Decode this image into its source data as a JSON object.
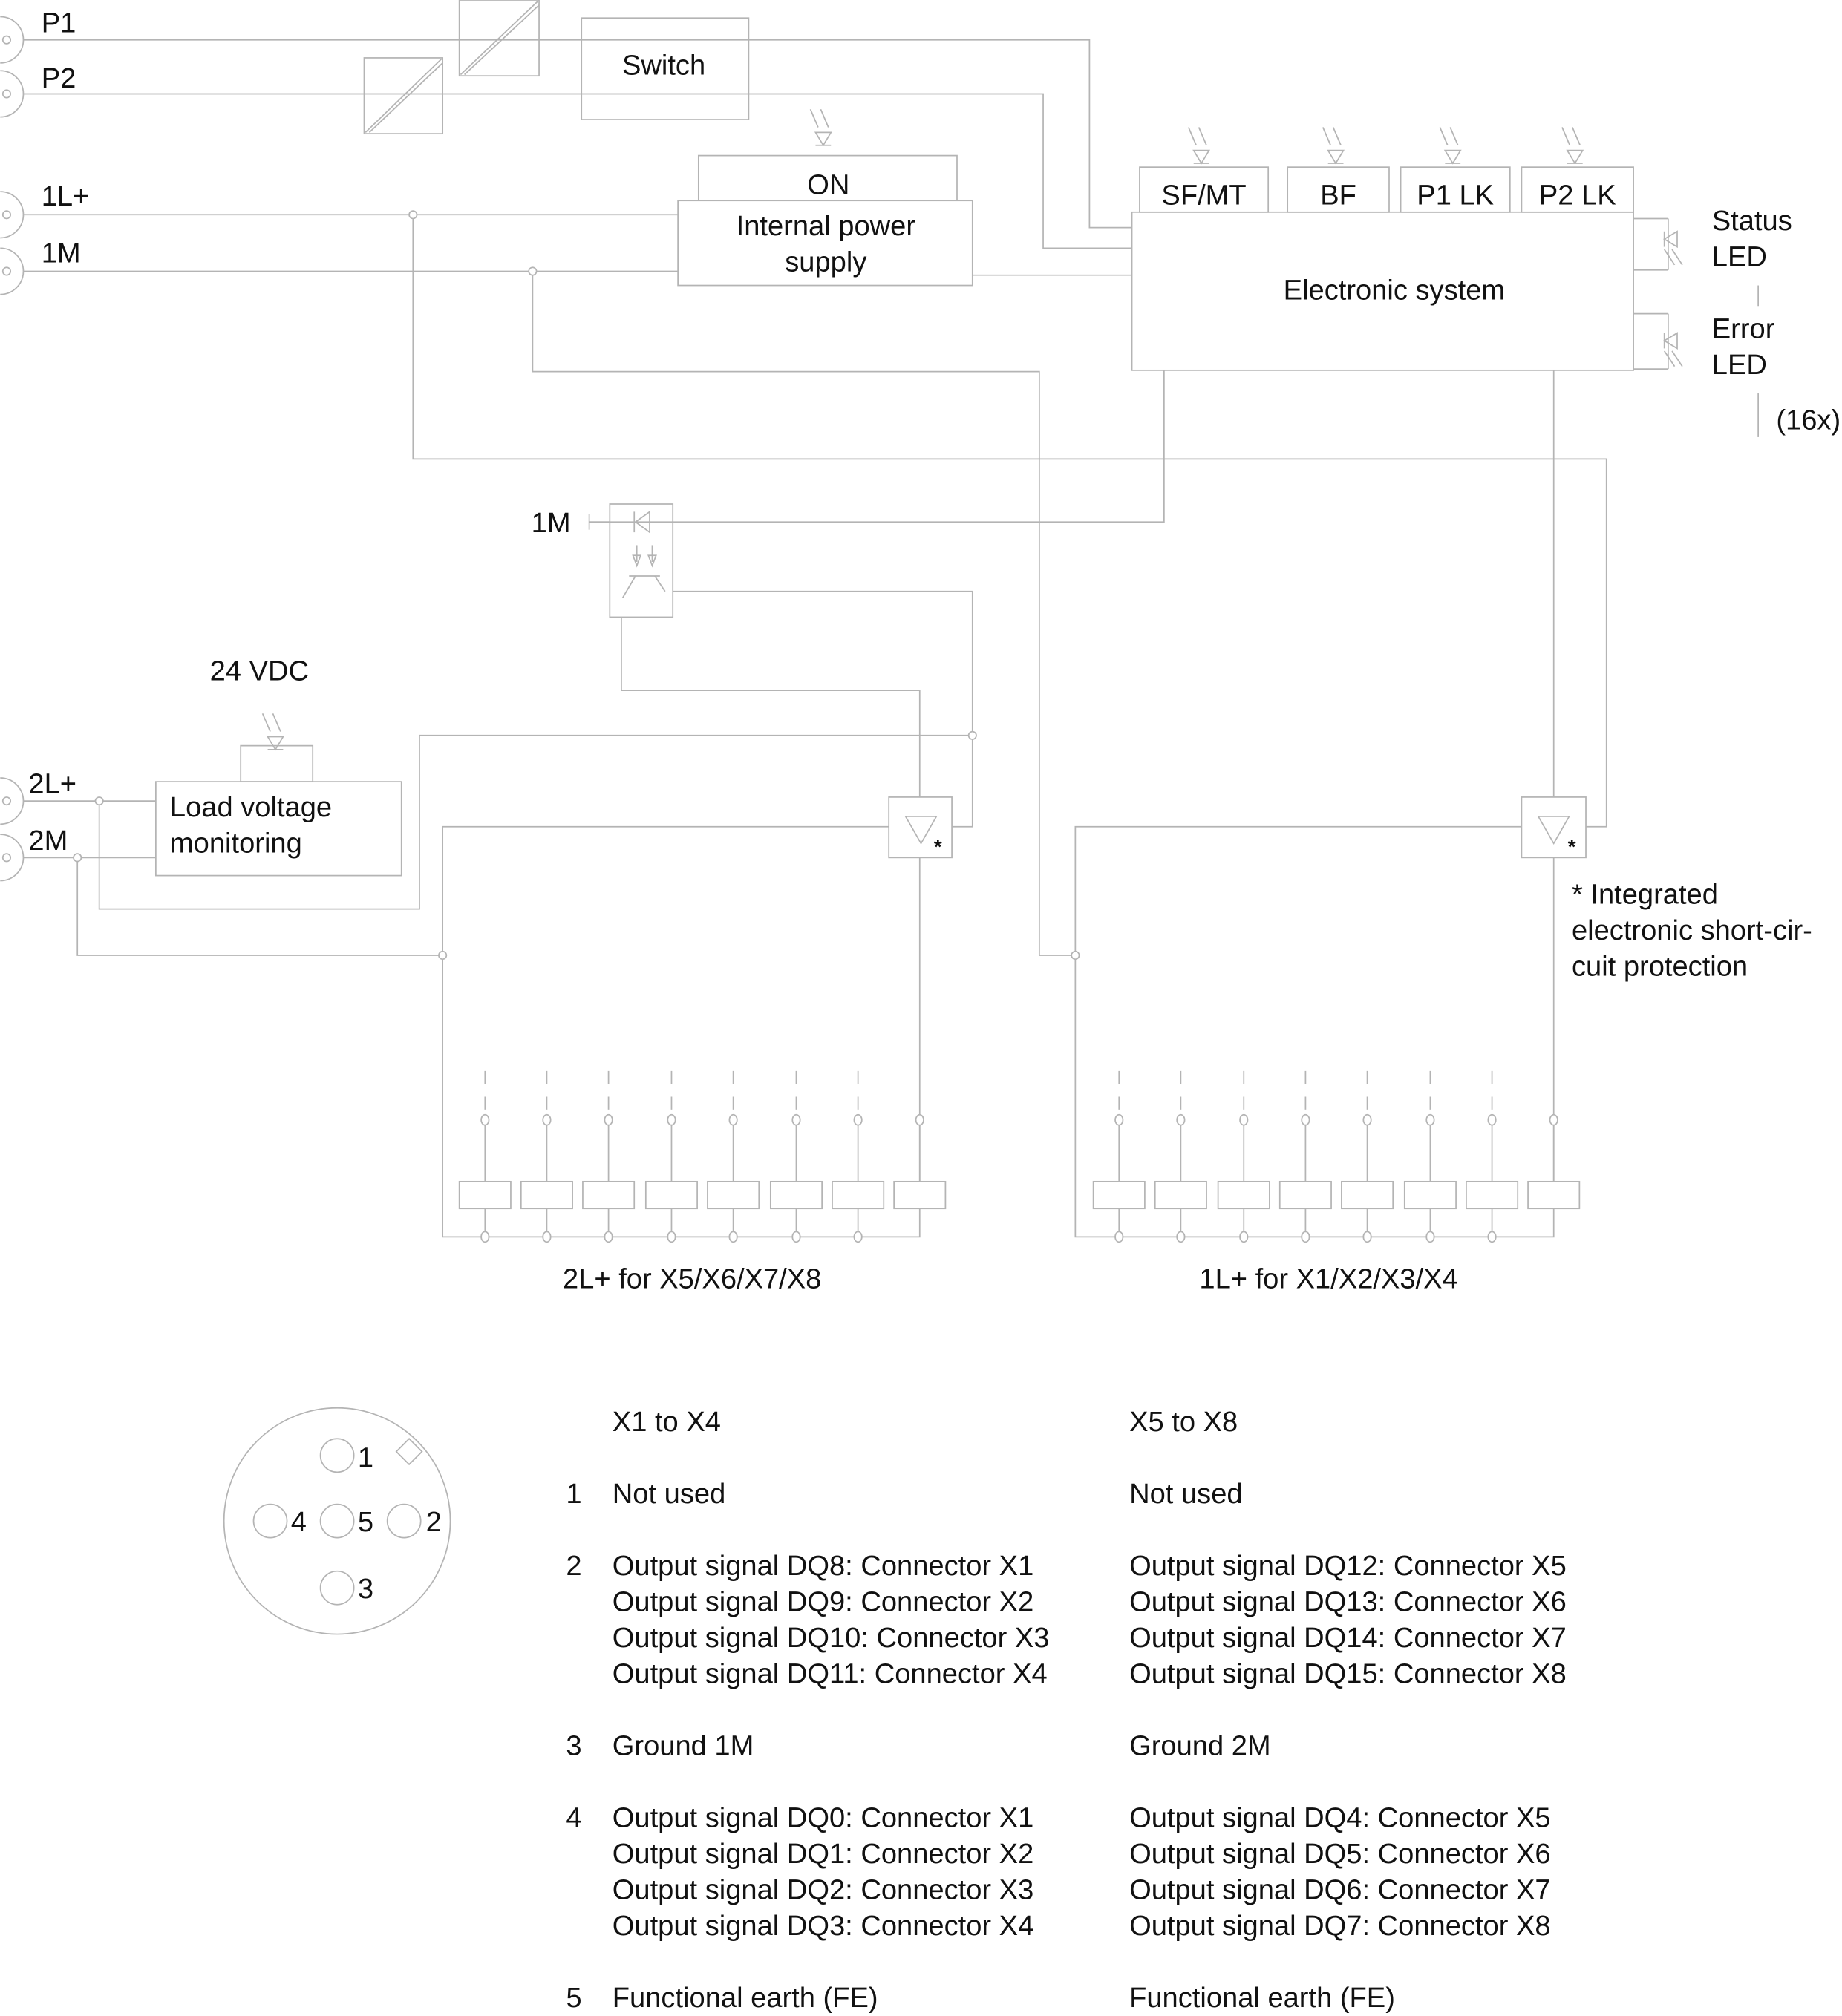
{
  "ports": {
    "p1": "P1",
    "p2": "P2",
    "l1plus": "1L+",
    "m1": "1M",
    "l2plus": "2L+",
    "m2": "2M"
  },
  "blocks": {
    "switch": "Switch",
    "on": "ON",
    "power_supply_line1": "Internal power",
    "power_supply_line2": "supply",
    "electronic_system": "Electronic system",
    "load_monitor_line1": "Load voltage",
    "load_monitor_line2": "monitoring",
    "vdc": "24 VDC",
    "opto_m": "1M"
  },
  "indicators": [
    "SF/MT",
    "BF",
    "P1 LK",
    "P2 LK"
  ],
  "leds": {
    "status_1": "Status",
    "status_2": "LED",
    "error_1": "Error",
    "error_2": "LED",
    "count": "(16x)"
  },
  "footnote": {
    "star": "*",
    "line1": "* Integrated",
    "line2": "electronic short-cir-",
    "line3": "cuit protection"
  },
  "groups": {
    "left": "2L+ for X5/X6/X7/X8",
    "right": "1L+ for X1/X2/X3/X4"
  },
  "pins": {
    "p1": "1",
    "p2": "2",
    "p3": "3",
    "p4": "4",
    "p5": "5"
  },
  "pin_table": {
    "header": [
      "X1 to X4",
      "X5 to X8"
    ],
    "rows": [
      {
        "pin": "1",
        "a": [
          "Not used"
        ],
        "b": [
          "Not used"
        ]
      },
      {
        "pin": "2",
        "a": [
          "Output signal DQ8: Connector X1",
          "Output signal DQ9: Connector X2",
          "Output signal DQ10: Connector X3",
          "Output signal DQ11: Connector X4"
        ],
        "b": [
          "Output signal DQ12: Connector X5",
          "Output signal DQ13: Connector X6",
          "Output signal DQ14: Connector X7",
          "Output signal DQ15: Connector X8"
        ]
      },
      {
        "pin": "3",
        "a": [
          "Ground 1M"
        ],
        "b": [
          "Ground 2M"
        ]
      },
      {
        "pin": "4",
        "a": [
          "Output signal DQ0: Connector X1",
          "Output signal DQ1: Connector X2",
          "Output signal DQ2: Connector X3",
          "Output signal DQ3: Connector X4"
        ],
        "b": [
          "Output signal DQ4: Connector X5",
          "Output signal DQ5: Connector X6",
          "Output signal DQ6: Connector X7",
          "Output signal DQ7: Connector X8"
        ]
      },
      {
        "pin": "5",
        "a": [
          "Functional earth (FE)"
        ],
        "b": [
          "Functional earth (FE)"
        ]
      }
    ]
  },
  "colors": {
    "line": "#b4b4b4",
    "text": "#111111"
  }
}
